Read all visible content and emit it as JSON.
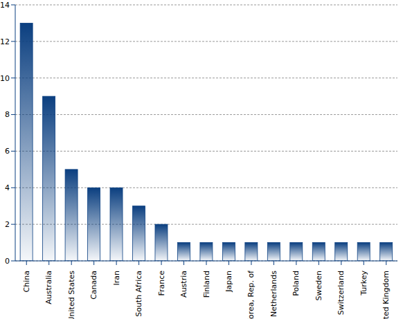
{
  "chart_data": {
    "type": "bar",
    "categories": [
      "China",
      "Australia",
      "United States",
      "Canada",
      "Iran",
      "South Africa",
      "France",
      "Austria",
      "Finland",
      "Japan",
      "Korea, Rep. of",
      "Netherlands",
      "Poland",
      "Sweden",
      "Switzerland",
      "Turkey",
      "United Kingdom"
    ],
    "values": [
      13,
      9,
      5,
      4,
      4,
      3,
      2,
      1,
      1,
      1,
      1,
      1,
      1,
      1,
      1,
      1,
      1
    ],
    "color": "#0b3f80",
    "ylim": [
      0,
      14
    ],
    "yticks": [
      0,
      2,
      4,
      6,
      8,
      10,
      12,
      14
    ],
    "grid": true
  }
}
